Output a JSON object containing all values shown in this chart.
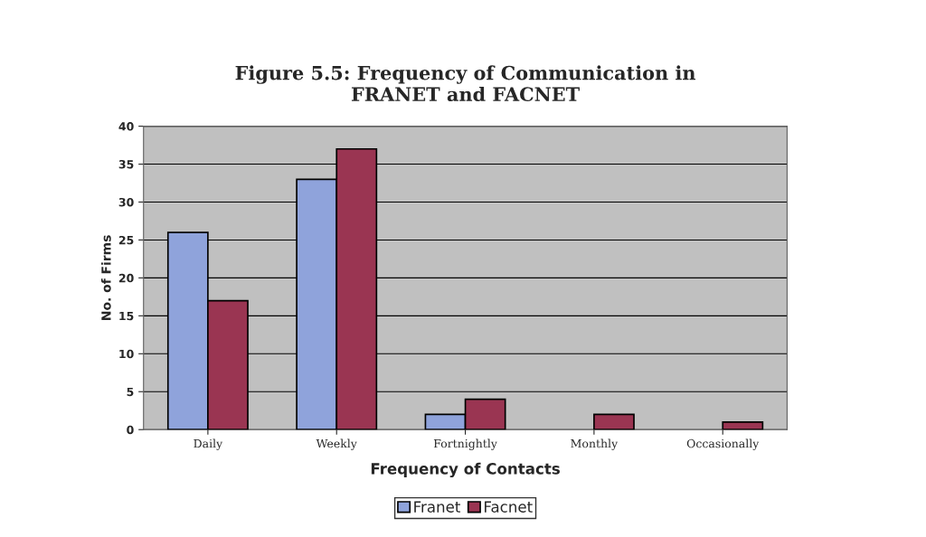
{
  "chart_data": {
    "type": "bar",
    "title": "Figure 5.5: Frequency of Communication in\nFRANET and FACNET",
    "xlabel": "Frequency of Contacts",
    "ylabel": "No. of Firms",
    "categories": [
      "Daily",
      "Weekly",
      "Fortnightly",
      "Monthly",
      "Occasionally"
    ],
    "series": [
      {
        "name": "Franet",
        "color": "#8fa3db",
        "values": [
          26,
          33,
          2,
          0,
          0
        ]
      },
      {
        "name": "Facnet",
        "color": "#9a3552",
        "values": [
          17,
          37,
          4,
          2,
          1
        ]
      }
    ],
    "ylim": [
      0,
      40
    ],
    "yticks": [
      0,
      5,
      10,
      15,
      20,
      25,
      30,
      35,
      40
    ],
    "grid": "y",
    "legend": "bottom"
  }
}
